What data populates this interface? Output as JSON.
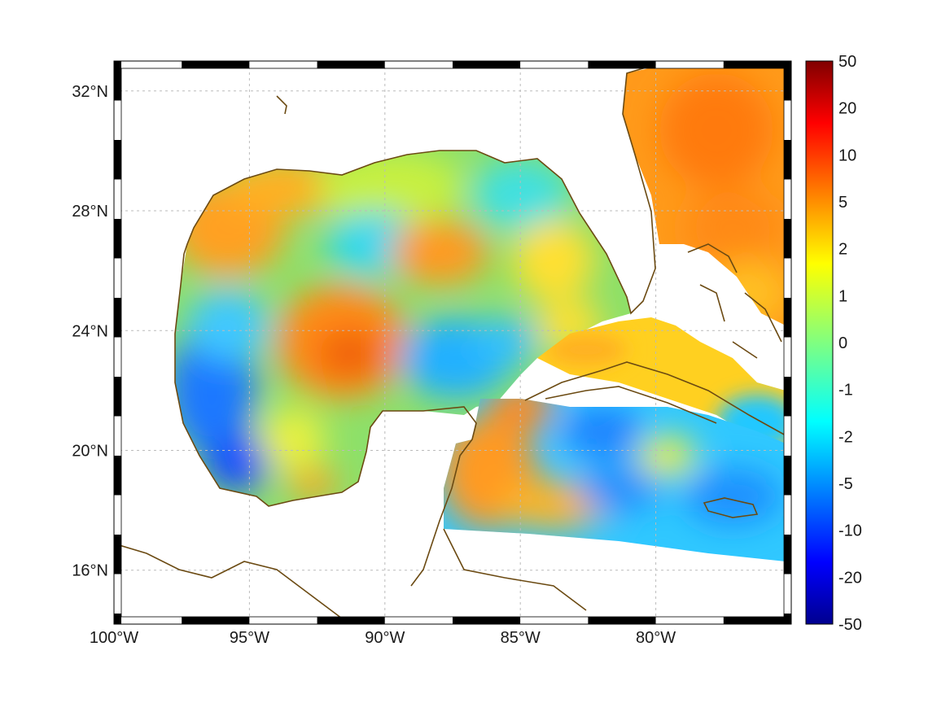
{
  "map": {
    "lon_range": [
      -100,
      -75
    ],
    "lat_range": [
      14.2,
      33.0
    ],
    "lon_ticks": [
      {
        "value": -100,
        "label": "100°W"
      },
      {
        "value": -95,
        "label": "95°W"
      },
      {
        "value": -90,
        "label": "90°W"
      },
      {
        "value": -85,
        "label": "85°W"
      },
      {
        "value": -80,
        "label": "80°W"
      }
    ],
    "lat_ticks": [
      {
        "value": 16,
        "label": "16°N"
      },
      {
        "value": 20,
        "label": "20°N"
      },
      {
        "value": 24,
        "label": "24°N"
      },
      {
        "value": 28,
        "label": "28°N"
      },
      {
        "value": 32,
        "label": "32°N"
      }
    ],
    "grid": true,
    "coastline_color": "#6b4a12",
    "frame_style": "alternating black/white border"
  },
  "colorbar": {
    "colormap": "jet",
    "labels": [
      "50",
      "20",
      "10",
      "5",
      "2",
      "1",
      "0",
      "-1",
      "-2",
      "-5",
      "-10",
      "-20",
      "-50"
    ]
  }
}
